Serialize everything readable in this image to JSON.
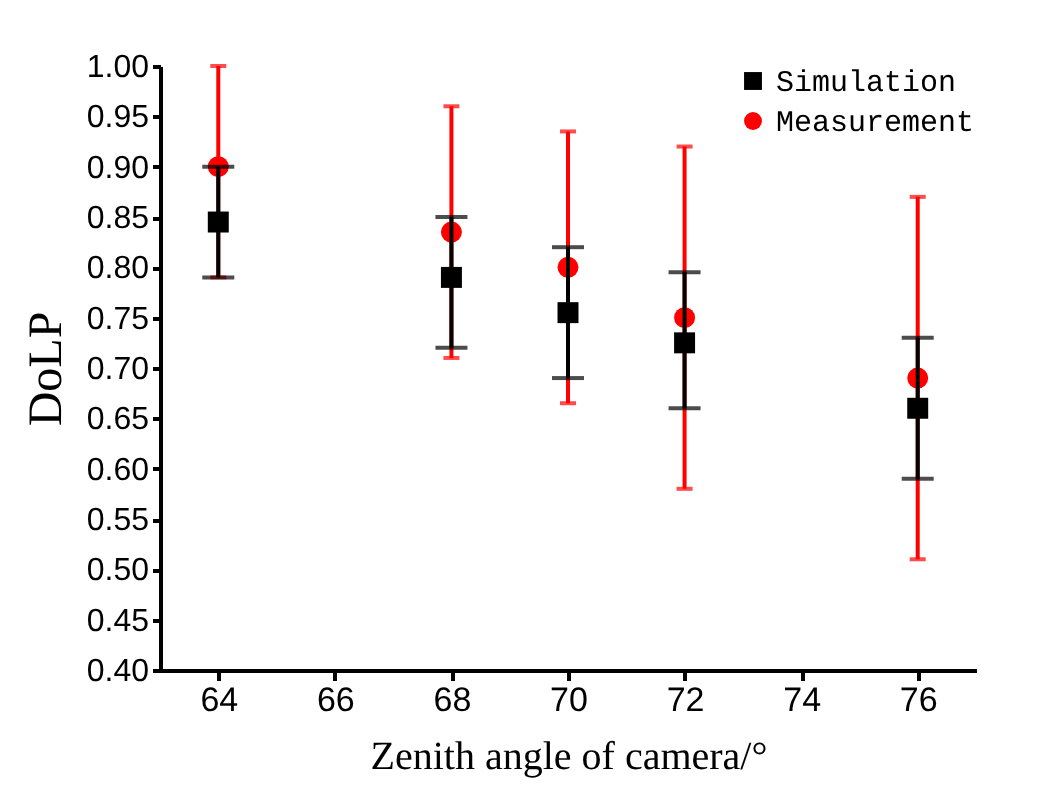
{
  "chart_data": {
    "type": "scatter",
    "xlabel": "Zenith angle of camera/°",
    "ylabel": "DoLP",
    "x": [
      64,
      68,
      70,
      72,
      76
    ],
    "series": [
      {
        "name": "Simulation",
        "color": "#000000",
        "marker": "square",
        "values": [
          0.845,
          0.79,
          0.755,
          0.725,
          0.66
        ],
        "errors": [
          [
            0.79,
            0.9
          ],
          [
            0.72,
            0.85
          ],
          [
            0.69,
            0.82
          ],
          [
            0.66,
            0.795
          ],
          [
            0.59,
            0.73
          ]
        ]
      },
      {
        "name": "Measurement",
        "color": "#ff0000",
        "marker": "circle",
        "values": [
          0.9,
          0.835,
          0.8,
          0.75,
          0.69
        ],
        "errors": [
          [
            0.79,
            1.0
          ],
          [
            0.71,
            0.96
          ],
          [
            0.665,
            0.935
          ],
          [
            0.58,
            0.92
          ],
          [
            0.51,
            0.87
          ]
        ]
      }
    ],
    "xlim": [
      63,
      77
    ],
    "xticks": [
      64,
      66,
      68,
      70,
      72,
      74,
      76
    ],
    "ylim": [
      0.4,
      1.0
    ],
    "yticks": [
      {
        "value": 0.4,
        "label": "0.40"
      },
      {
        "value": 0.45,
        "label": "0.45"
      },
      {
        "value": 0.5,
        "label": "0.50"
      },
      {
        "value": 0.55,
        "label": "0.55"
      },
      {
        "value": 0.6,
        "label": "0.60"
      },
      {
        "value": 0.65,
        "label": "0.65"
      },
      {
        "value": 0.7,
        "label": "0.70"
      },
      {
        "value": 0.75,
        "label": "0.75"
      },
      {
        "value": 0.8,
        "label": "0.80"
      },
      {
        "value": 0.85,
        "label": "0.85"
      },
      {
        "value": 0.9,
        "label": "0.90"
      },
      {
        "value": 0.95,
        "label": "0.95"
      },
      {
        "value": 1.0,
        "label": "1.00"
      }
    ],
    "legend": "top right",
    "grid": false
  }
}
